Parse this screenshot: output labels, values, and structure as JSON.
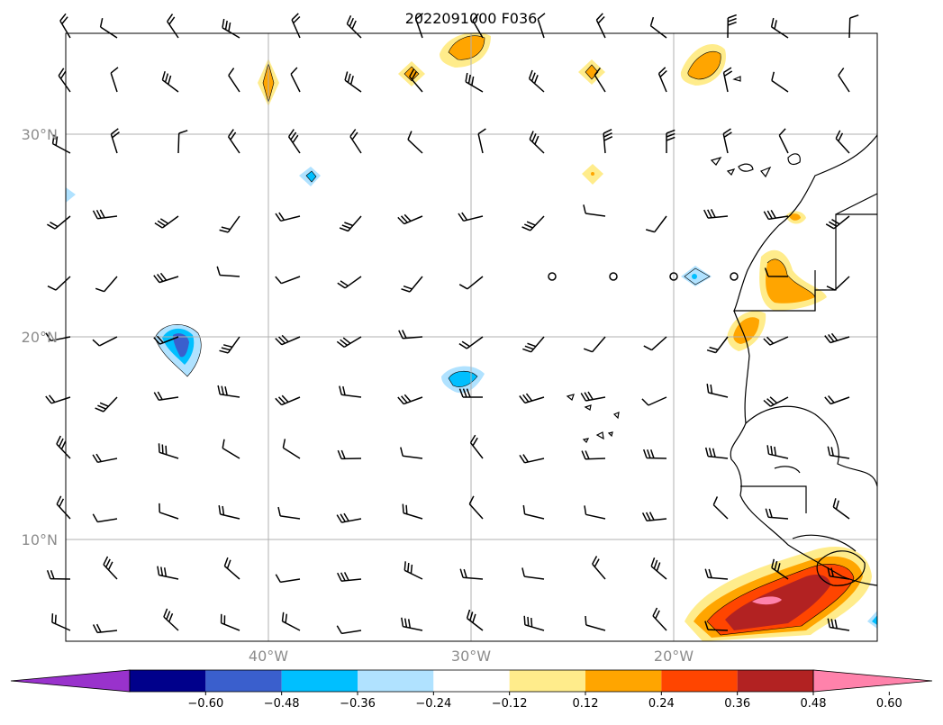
{
  "title": "2022091000 F036",
  "map": {
    "lat_labels": [
      "30°N",
      "20°N",
      "10°N"
    ],
    "lon_labels": [
      "40°W",
      "30°W",
      "20°W"
    ],
    "lon_range": [
      -50,
      -10
    ],
    "lat_range": [
      5,
      35
    ]
  },
  "colorbar": {
    "tick_labels": [
      "−0.60",
      "−0.48",
      "−0.36",
      "−0.24",
      "−0.12",
      "0.12",
      "0.24",
      "0.36",
      "0.48",
      "0.60"
    ],
    "colors": [
      "#9932CC",
      "#00008B",
      "#3A5FCD",
      "#00BFFF",
      "#B0E2FF",
      "#FFFFFF",
      "#FFEC8B",
      "#FFA500",
      "#FF4500",
      "#B22222",
      "#FF82AB"
    ]
  },
  "colors": {
    "grid": "#b0b0b0",
    "axis_label": "#8c8c8c"
  }
}
